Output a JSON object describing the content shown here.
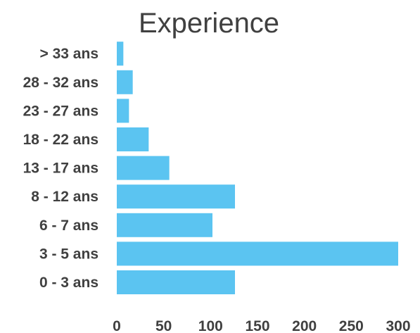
{
  "chart_data": {
    "type": "bar",
    "orientation": "horizontal",
    "title": "Experience",
    "categories": [
      "0 - 3 ans",
      "3 - 5 ans",
      "6 - 7 ans",
      "8 - 12 ans",
      "13 - 17 ans",
      "18 - 22 ans",
      "23 - 27 ans",
      "28 - 32 ans",
      "> 33 ans"
    ],
    "values": [
      126,
      300,
      102,
      126,
      56,
      34,
      13,
      17,
      7
    ],
    "xlim": [
      0,
      300
    ],
    "xticks": [
      "0",
      "50",
      "100",
      "150",
      "200",
      "250",
      "300"
    ],
    "grid": false,
    "legend": "none",
    "bar_color": "#5BC4F1",
    "text_color": "#404040"
  }
}
